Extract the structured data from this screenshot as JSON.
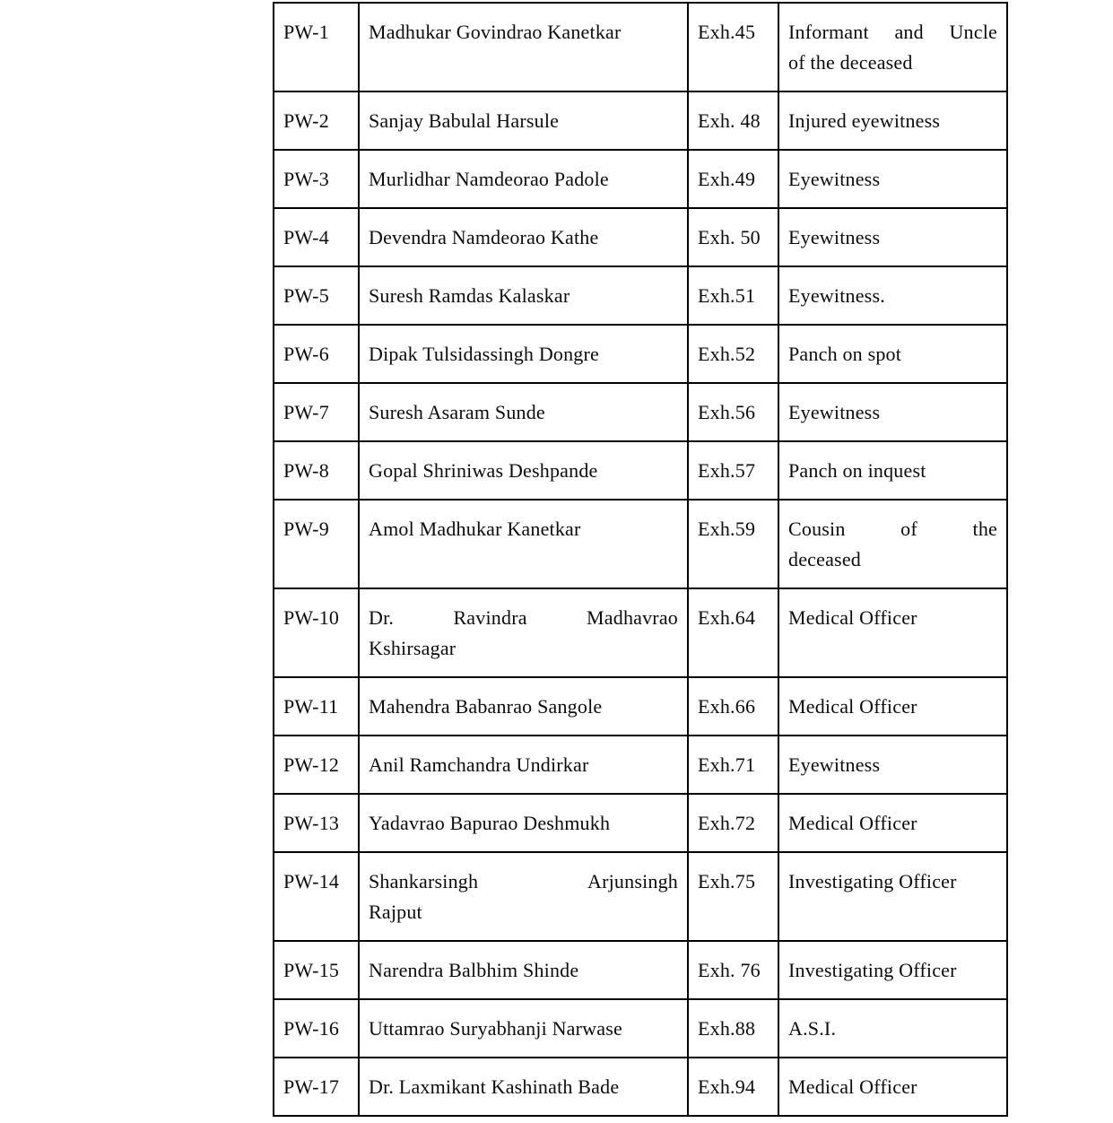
{
  "page": {
    "background_color": "#ffffff",
    "text_color": "#0c0c0c",
    "border_color": "#000000"
  },
  "table": {
    "columns": [
      "witness-id",
      "witness-name",
      "exhibit-number",
      "witness-role"
    ],
    "rows": [
      {
        "id": "PW-1",
        "name": [
          "Madhukar Govindrao Kanetkar"
        ],
        "exh": "Exh.45",
        "role": [
          "Informant and Uncle",
          "of the deceased"
        ]
      },
      {
        "id": "PW-2",
        "name": [
          "Sanjay Babulal Harsule"
        ],
        "exh": "Exh. 48",
        "role": [
          "Injured eyewitness"
        ]
      },
      {
        "id": "PW-3",
        "name": [
          "Murlidhar Namdeorao Padole"
        ],
        "exh": "Exh.49",
        "role": [
          "Eyewitness"
        ]
      },
      {
        "id": "PW-4",
        "name": [
          "Devendra Namdeorao Kathe"
        ],
        "exh": "Exh. 50",
        "role": [
          "Eyewitness"
        ]
      },
      {
        "id": "PW-5",
        "name": [
          "Suresh Ramdas Kalaskar"
        ],
        "exh": "Exh.51",
        "role": [
          "Eyewitness."
        ]
      },
      {
        "id": "PW-6",
        "name": [
          "Dipak Tulsidassingh Dongre"
        ],
        "exh": "Exh.52",
        "role": [
          "Panch on spot"
        ]
      },
      {
        "id": "PW-7",
        "name": [
          "Suresh Asaram Sunde"
        ],
        "exh": "Exh.56",
        "role": [
          "Eyewitness"
        ]
      },
      {
        "id": "PW-8",
        "name": [
          "Gopal Shriniwas Deshpande"
        ],
        "exh": "Exh.57",
        "role": [
          "Panch on inquest"
        ]
      },
      {
        "id": "PW-9",
        "name": [
          "Amol Madhukar Kanetkar"
        ],
        "exh": "Exh.59",
        "role": [
          "Cousin of the",
          "deceased"
        ]
      },
      {
        "id": "PW-10",
        "name": [
          "Dr. Ravindra Madhavrao",
          "Kshirsagar"
        ],
        "exh": "Exh.64",
        "role": [
          "Medical Officer"
        ]
      },
      {
        "id": "PW-11",
        "name": [
          "Mahendra Babanrao Sangole"
        ],
        "exh": "Exh.66",
        "role": [
          "Medical Officer"
        ]
      },
      {
        "id": "PW-12",
        "name": [
          "Anil Ramchandra Undirkar"
        ],
        "exh": "Exh.71",
        "role": [
          "Eyewitness"
        ]
      },
      {
        "id": "PW-13",
        "name": [
          "Yadavrao Bapurao Deshmukh"
        ],
        "exh": "Exh.72",
        "role": [
          "Medical Officer"
        ]
      },
      {
        "id": "PW-14",
        "name": [
          "Shankarsingh Arjunsingh",
          "Rajput"
        ],
        "exh": "Exh.75",
        "role": [
          "Investigating Officer"
        ]
      },
      {
        "id": "PW-15",
        "name": [
          "Narendra Balbhim Shinde"
        ],
        "exh": "Exh. 76",
        "role": [
          "Investigating Officer"
        ]
      },
      {
        "id": "PW-16",
        "name": [
          "Uttamrao Suryabhanji Narwase"
        ],
        "exh": "Exh.88",
        "role": [
          "A.S.I."
        ]
      },
      {
        "id": "PW-17",
        "name": [
          "Dr. Laxmikant Kashinath Bade"
        ],
        "exh": "Exh.94",
        "role": [
          "Medical Officer"
        ]
      }
    ]
  }
}
